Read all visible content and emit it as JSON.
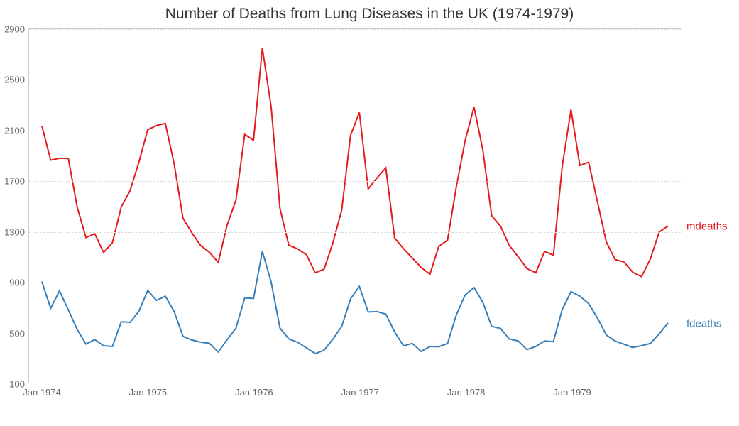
{
  "chart": {
    "type": "line",
    "title": "Number of Deaths from Lung Diseases in the UK (1974-1979)",
    "title_fontsize": 21,
    "title_color": "#333333",
    "background_color": "#ffffff",
    "plot_border_color": "#cccccc",
    "grid_color": "#dddddd",
    "grid_style": "dashed",
    "tick_fontsize": 13,
    "tick_color": "#666666",
    "label_fontsize": 15,
    "line_width": 2,
    "ylim": [
      100,
      2900
    ],
    "yticks": [
      100,
      500,
      900,
      1300,
      1700,
      2100,
      2500,
      2900
    ],
    "x_count": 72,
    "xticks": [
      {
        "index": 0,
        "label": "Jan 1974"
      },
      {
        "index": 12,
        "label": "Jan 1975"
      },
      {
        "index": 24,
        "label": "Jan 1976"
      },
      {
        "index": 36,
        "label": "Jan 1977"
      },
      {
        "index": 48,
        "label": "Jan 1978"
      },
      {
        "index": 60,
        "label": "Jan 1979"
      }
    ],
    "series": [
      {
        "name": "mdeaths",
        "color": "#e41a1c",
        "values": [
          2134,
          1863,
          1877,
          1877,
          1492,
          1249,
          1280,
          1131,
          1209,
          1492,
          1621,
          1846,
          2103,
          2137,
          2153,
          1833,
          1403,
          1288,
          1186,
          1133,
          1053,
          1347,
          1545,
          2066,
          2020,
          2750,
          2283,
          1479,
          1189,
          1160,
          1113,
          970,
          999,
          1208,
          1467,
          2059,
          2240,
          1634,
          1722,
          1801,
          1246,
          1162,
          1087,
          1013,
          959,
          1179,
          1229,
          1655,
          2019,
          2284,
          1942,
          1423,
          1340,
          1187,
          1098,
          1004,
          970,
          1140,
          1110,
          1812,
          2263,
          1820,
          1846,
          1531,
          1215,
          1075,
          1056,
          975,
          940,
          1081,
          1294,
          1341
        ]
      },
      {
        "name": "fdeaths",
        "color": "#377eb8",
        "values": [
          901,
          689,
          827,
          677,
          522,
          406,
          441,
          393,
          387,
          582,
          578,
          666,
          830,
          752,
          785,
          664,
          467,
          438,
          421,
          412,
          343,
          440,
          531,
          771,
          767,
          1141,
          896,
          532,
          447,
          420,
          376,
          330,
          357,
          445,
          546,
          764,
          862,
          660,
          663,
          643,
          502,
          392,
          411,
          348,
          387,
          385,
          411,
          638,
          796,
          853,
          737,
          546,
          530,
          446,
          431,
          362,
          387,
          430,
          425,
          679,
          821,
          785,
          727,
          612,
          478,
          429,
          405,
          379,
          393,
          411,
          487,
          574
        ]
      }
    ]
  }
}
